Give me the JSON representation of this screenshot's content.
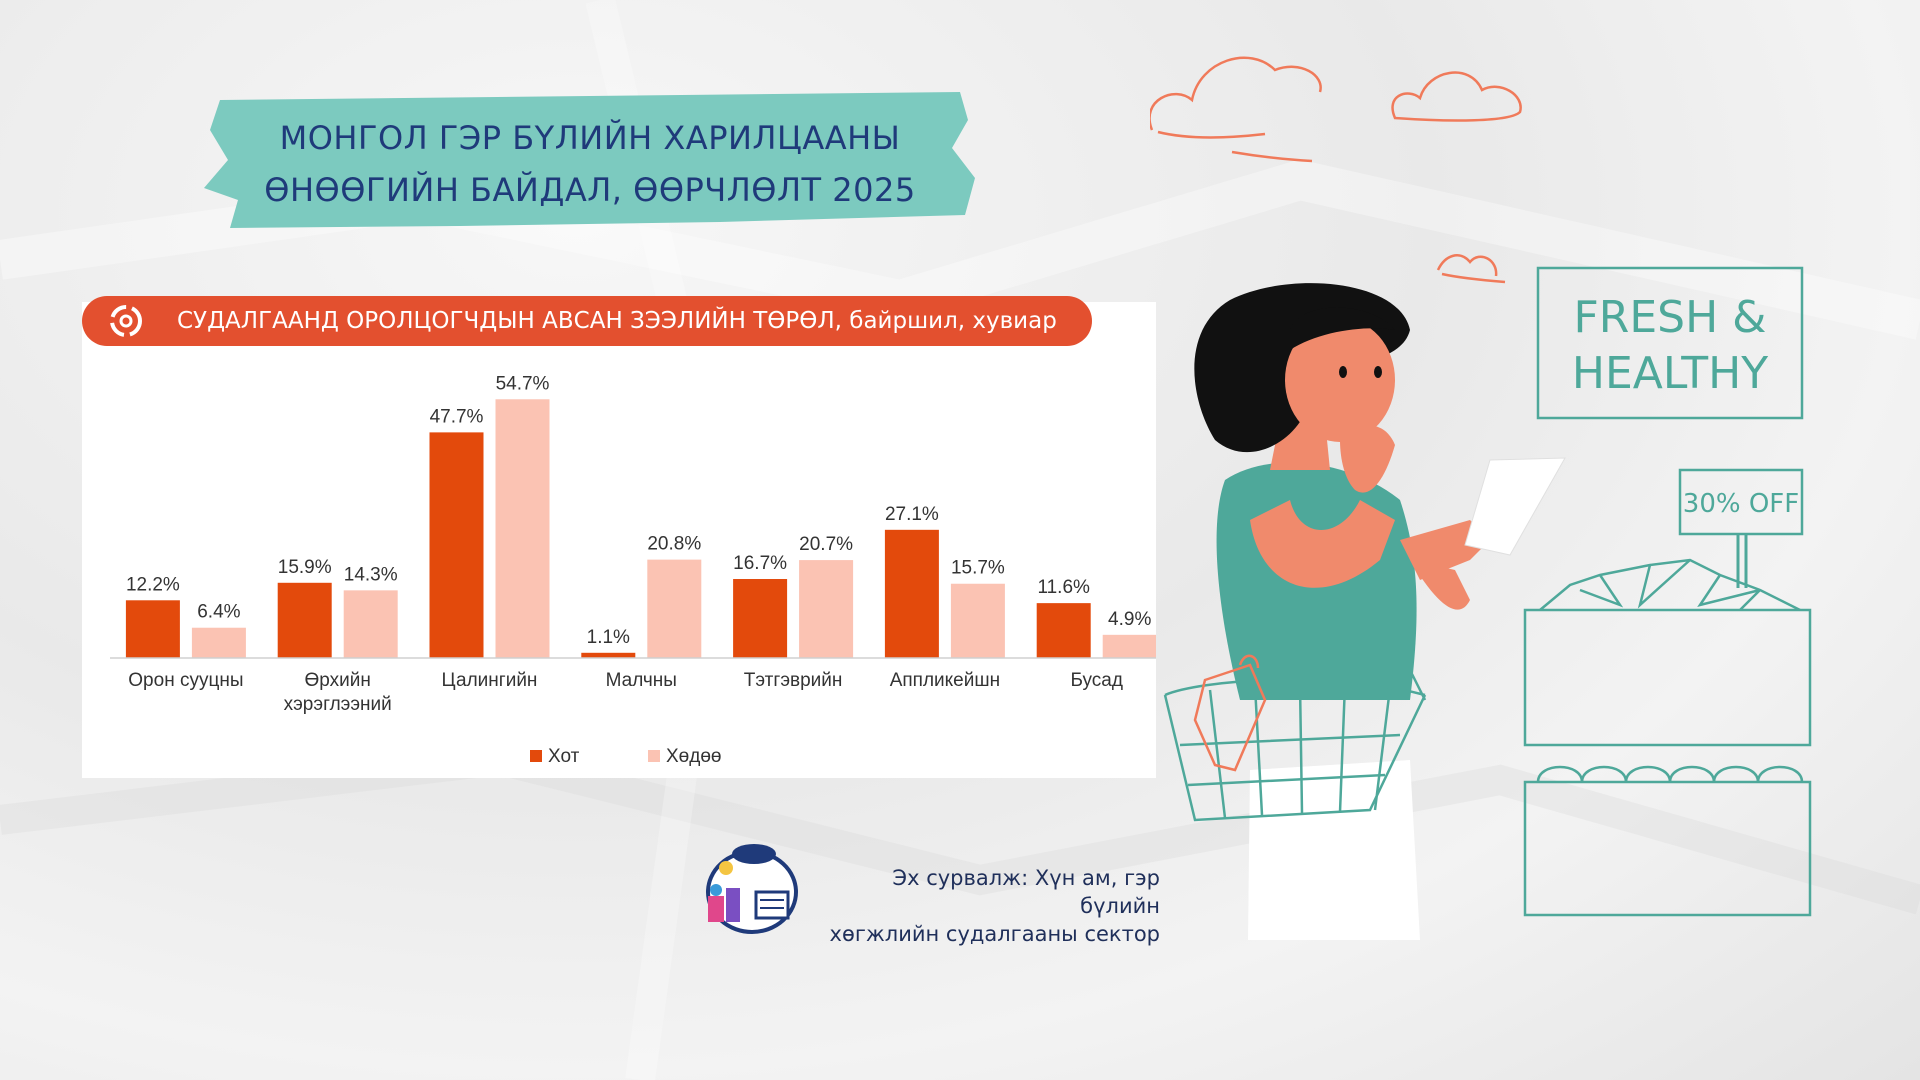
{
  "title": {
    "line1": "МОНГОЛ ГЭР БҮЛИЙН ХАРИЛЦААНЫ",
    "line2": "ӨНӨӨГИЙН БАЙДАЛ, ӨӨРЧЛӨЛТ 2025"
  },
  "chart_header": "СУДАЛГААНД ОРОЛЦОГЧДЫН АВСАН ЗЭЭЛИЙН ТӨРӨЛ,  байршил, хувиар",
  "chart_data": {
    "type": "bar",
    "categories": [
      "Орон сууцны",
      "Өрхийн хэрэглээний",
      "Цалингийн",
      "Малчны",
      "Тэтгэврийн",
      "Аппликейшн",
      "Бусад"
    ],
    "category_lines": [
      [
        "Орон сууцны"
      ],
      [
        "Өрхийн",
        "хэрэглээний"
      ],
      [
        "Цалингийн"
      ],
      [
        "Малчны"
      ],
      [
        "Тэтгэврийн"
      ],
      [
        "Аппликейшн"
      ],
      [
        "Бусад"
      ]
    ],
    "series": [
      {
        "name": "Хот",
        "values": [
          12.2,
          15.9,
          47.7,
          1.1,
          16.7,
          27.1,
          11.6
        ],
        "labels": [
          "12.2%",
          "15.9%",
          "47.7%",
          "1.1%",
          "16.7%",
          "27.1%",
          "11.6%"
        ],
        "color": "#e34a0c"
      },
      {
        "name": "Хөдөө",
        "values": [
          6.4,
          14.3,
          54.7,
          20.8,
          20.7,
          15.7,
          4.9
        ],
        "labels": [
          "6.4%",
          "14.3%",
          "54.7%",
          "20.8%",
          "20.7%",
          "15.7%",
          "4.9%"
        ],
        "color": "#fbc3b3"
      }
    ],
    "ylim": [
      0,
      60
    ],
    "grid": false,
    "legend_position": "bottom"
  },
  "source": {
    "line1": "Эх сурвалж: Хүн ам, гэр бүлийн",
    "line2": "хөгжлийн судалгааны сектор"
  },
  "illustration": {
    "sign_text_1": "FRESH &",
    "sign_text_2": "HEALTHY",
    "tag_text": "30% OFF"
  },
  "colors": {
    "header_bg": "#e3502f",
    "banner": "#7ccabf",
    "title_text": "#1f3a7a",
    "teal_line": "#4ea89a",
    "skin": "#f08a6c"
  }
}
